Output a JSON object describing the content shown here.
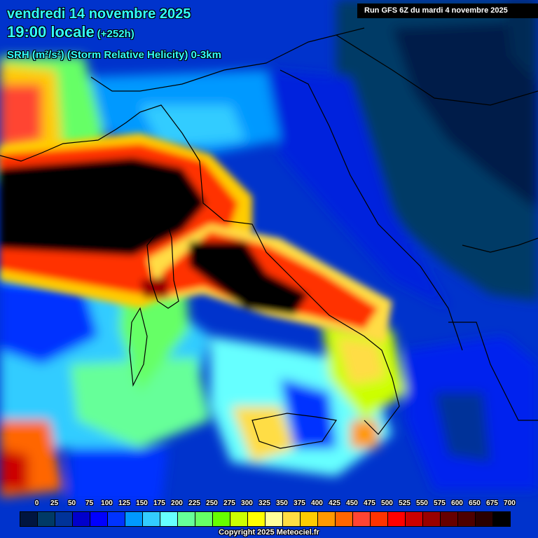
{
  "header": {
    "date": "vendredi 14 novembre 2025",
    "time": "19:00 locale",
    "offset": "(+252h)",
    "parameter": "SRH (m²/s²) (Storm Relative Helicity) 0-3km",
    "run": "Run GFS 6Z du mardi 4 novembre 2025"
  },
  "legend": {
    "labels": [
      "0",
      "25",
      "50",
      "75",
      "100",
      "125",
      "150",
      "175",
      "200",
      "225",
      "250",
      "275",
      "300",
      "325",
      "350",
      "375",
      "400",
      "425",
      "450",
      "475",
      "500",
      "525",
      "550",
      "575",
      "600",
      "650",
      "675",
      "700"
    ],
    "colors": [
      "#001540",
      "#003a66",
      "#003399",
      "#0000cc",
      "#0000ff",
      "#0033ff",
      "#0099ff",
      "#33ccff",
      "#66ffff",
      "#66ff99",
      "#66ff66",
      "#66ff00",
      "#ccff00",
      "#ffff00",
      "#ffff99",
      "#ffdd44",
      "#ffcc00",
      "#ff9900",
      "#ff6600",
      "#ff4433",
      "#ff3300",
      "#ff0000",
      "#cc0000",
      "#990000",
      "#660000",
      "#4d0000",
      "#2a0000",
      "#000000"
    ]
  },
  "copyright": "Copyright 2025 Meteociel.fr",
  "map": {
    "region": "Western Mediterranean / Italy / Balkans",
    "features": [
      {
        "name": "high-srh-band-ligurian",
        "value_range": "600-700+",
        "color": "#000000"
      },
      {
        "name": "high-srh-tyrrhenian",
        "value_range": "500-700+",
        "color": "#000000"
      },
      {
        "name": "low-srh-balkans",
        "value_range": "0-50",
        "color": "#001540"
      }
    ]
  }
}
